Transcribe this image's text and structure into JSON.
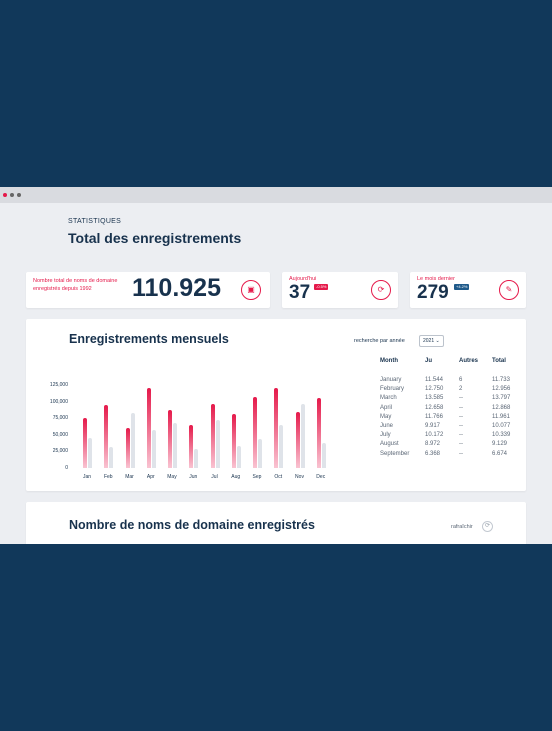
{
  "header": {
    "kicker": "STATISTIQUES",
    "title": "Total des enregistrements"
  },
  "stats": {
    "total": {
      "label": "Nombre total de noms de domaine enregistrés depuis 1992",
      "value": "110.925",
      "icon": "cube-icon"
    },
    "today": {
      "label": "Aujourd'hui",
      "value": "37",
      "badge": "-0.5%",
      "icon": "refresh-icon"
    },
    "last_month": {
      "label": "Le mois dernier",
      "value": "279",
      "badge": "+4.2%",
      "icon": "edit-icon"
    }
  },
  "monthly": {
    "title": "Enregistrements mensuels",
    "search_label": "recherche par année",
    "year": "2021",
    "table": {
      "headers": [
        "Month",
        "Ju",
        "Autres",
        "Total"
      ],
      "rows": [
        [
          "January",
          "11.544",
          "6",
          "11.733"
        ],
        [
          "February",
          "12.750",
          "2",
          "12.956"
        ],
        [
          "March",
          "13.585",
          "--",
          "13.797"
        ],
        [
          "April",
          "12.658",
          "--",
          "12.868"
        ],
        [
          "May",
          "11.766",
          "--",
          "11.961"
        ],
        [
          "June",
          "9.917",
          "--",
          "10.077"
        ],
        [
          "July",
          "10.172",
          "--",
          "10.339"
        ],
        [
          "August",
          "8.972",
          "--",
          "9.129"
        ],
        [
          "September",
          "6.368",
          "--",
          "6.674"
        ]
      ]
    }
  },
  "chart_data": {
    "type": "bar",
    "categories": [
      "Jan",
      "Feb",
      "Mar",
      "Apr",
      "May",
      "Jun",
      "Jul",
      "Aug",
      "Sep",
      "Oct",
      "Nov",
      "Dec"
    ],
    "series": [
      {
        "values": [
          75000,
          95000,
          60000,
          120000,
          87000,
          65000,
          97000,
          82000,
          107000,
          120000,
          85000,
          105000
        ]
      },
      {
        "values": [
          45000,
          32000,
          83000,
          58000,
          68000,
          28000,
          72000,
          33000,
          43000,
          65000,
          97000,
          38000
        ]
      }
    ],
    "yticks": [
      "125,000",
      "100,000",
      "75,000",
      "50,000",
      "25,000",
      "0"
    ],
    "ylim": [
      0,
      125000
    ],
    "colors": [
      "#e5194a",
      "#dfe3e9"
    ]
  },
  "domains": {
    "title": "Nombre de noms de domaine enregistrés",
    "refresh_label": "rafraîchir"
  }
}
